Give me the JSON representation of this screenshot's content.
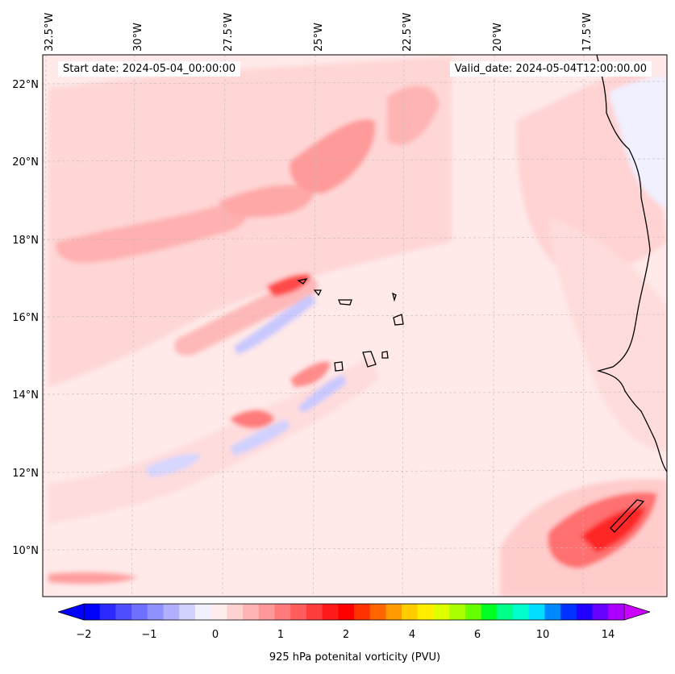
{
  "map": {
    "lon_labels": [
      "32.5°W",
      "30°W",
      "27.5°W",
      "25°W",
      "22.5°W",
      "20°W",
      "17.5°W"
    ],
    "lat_labels": [
      "22°N",
      "20°N",
      "18°N",
      "16°N",
      "14°N",
      "12°N",
      "10°N"
    ],
    "start_date": "Start date: 2024-05-04_00:00:00",
    "valid_date": "Valid_date: 2024-05-04T12:00:00.00",
    "gridlines": true,
    "field_name": "925 hPa potential vorticity"
  },
  "colorbar": {
    "label": "925 hPa potenital vorticity (PVU)",
    "tick_labels": [
      "−2",
      "−1",
      "0",
      "1",
      "2",
      "4",
      "6",
      "10",
      "14"
    ],
    "colors": [
      "#0000ff",
      "#2a2aff",
      "#4e4eff",
      "#7070ff",
      "#9090ff",
      "#b0b0ff",
      "#d2d2ff",
      "#f0f0ff",
      "#ffeded",
      "#ffd2d2",
      "#ffb4b4",
      "#ff9898",
      "#ff7b7b",
      "#ff5c5c",
      "#ff3c3c",
      "#ff1a1a",
      "#ff0000",
      "#ff3300",
      "#ff6600",
      "#ff9900",
      "#ffcc00",
      "#ffee00",
      "#ddff00",
      "#aaff00",
      "#66ff00",
      "#00ff22",
      "#00ff88",
      "#00ffcc",
      "#00ddff",
      "#0088ff",
      "#0033ff",
      "#2200ff",
      "#6600ff",
      "#aa00ff"
    ],
    "extend_low_color": "#0000ff",
    "extend_high_color": "#cc00ff"
  }
}
